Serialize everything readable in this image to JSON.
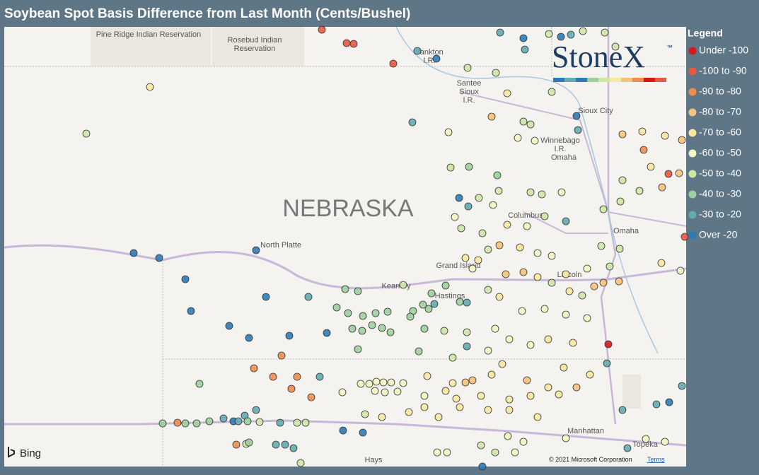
{
  "title": "Soybean Spot Basis Difference from Last Month (Cents/Bushel)",
  "legend": {
    "title": "Legend",
    "items": [
      {
        "label": "Under -100",
        "color": "#d7191c"
      },
      {
        "label": "-100 to -90",
        "color": "#e8583c"
      },
      {
        "label": "-90 to -80",
        "color": "#f08c4e"
      },
      {
        "label": "-80 to -70",
        "color": "#f7c27c"
      },
      {
        "label": "-70 to -60",
        "color": "#fae8a0"
      },
      {
        "label": "-60 to -50",
        "color": "#f2f6c2"
      },
      {
        "label": "-50 to -40",
        "color": "#cfe7a6"
      },
      {
        "label": "-40 to -30",
        "color": "#9dd09c"
      },
      {
        "label": "-30 to -20",
        "color": "#62abb0"
      },
      {
        "label": "Over -20",
        "color": "#2c7bb8"
      }
    ]
  },
  "map": {
    "labels": [
      "Pine Ridge Indian Reservation",
      "Rosebud Indian",
      "Reservation",
      "Yankton",
      "I.R.",
      "Santee",
      "Sioux",
      "I.R.",
      "Sioux City",
      "Winnebago",
      "I.R.",
      "Omaha",
      "NEBRASKA",
      "Columbus",
      "Omaha",
      "North Platte",
      "Grand Island",
      "Kearney",
      "Hastings",
      "Lincoln",
      "Manhattan",
      "Topeka",
      "Hays"
    ]
  },
  "logo": {
    "text": "StoneX",
    "mark": "™"
  },
  "attribution": {
    "provider": "Bing",
    "copyright": "© 2021 Microsoft Corporation",
    "terms": "Terms"
  }
}
